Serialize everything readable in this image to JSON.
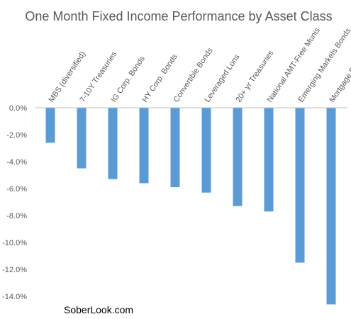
{
  "chart_data": {
    "type": "bar",
    "title": "One Month Fixed Income Performance by Asset Class",
    "xlabel": "",
    "ylabel": "",
    "categories": [
      "MBS (diversified)",
      "7-10Y Treasuries",
      "IG Corp. Bonds",
      "HY Corp. Bonds",
      "Convertible Bonds",
      "Leveraged Lons",
      "20+ yr Treasuries",
      "National AMT-Free Munis",
      "Emerging Markets Bonds",
      "Mortgage REITs"
    ],
    "values": [
      -2.6,
      -4.5,
      -5.3,
      -5.6,
      -5.9,
      -6.3,
      -7.3,
      -7.7,
      -11.5,
      -14.6
    ],
    "ylim": [
      -14,
      0
    ],
    "yticks": [
      0,
      -2,
      -4,
      -6,
      -8,
      -10,
      -12,
      -14
    ],
    "ytick_labels": [
      "0.0%",
      "-2.0%",
      "-4.0%",
      "-6.0%",
      "-8.0%",
      "-10.0%",
      "-12.0%",
      "-14.0%"
    ],
    "grid": false,
    "legend": "none",
    "bar_color": "#5b9bd5",
    "annotation": "SoberLook.com"
  }
}
